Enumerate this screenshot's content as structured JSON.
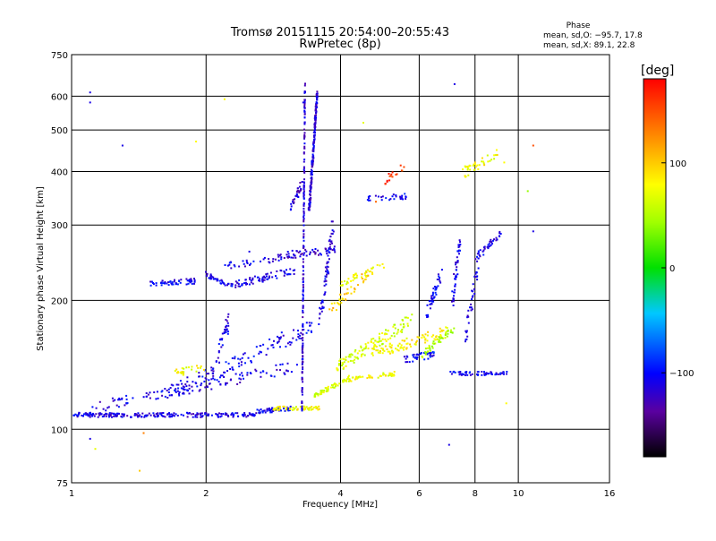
{
  "chart_data": {
    "type": "scatter",
    "title": "Tromsø 20151115 20:54:00–20:55:43",
    "subtitle": "RwPretec (8p)",
    "xlabel": "Frequency [MHz]",
    "ylabel": "Stationary phase Virtual Height [km]",
    "x_scale": "log",
    "y_scale": "log",
    "xlim": [
      1,
      16
    ],
    "ylim": [
      75,
      750
    ],
    "xticks": [
      "1",
      "2",
      "4",
      "6",
      "8",
      "10",
      "16"
    ],
    "xtick_values": [
      1,
      2,
      4,
      6,
      8,
      10,
      16
    ],
    "yticks": [
      "75",
      "100",
      "200",
      "300",
      "400",
      "500",
      "600",
      "750"
    ],
    "ytick_values": [
      75,
      100,
      200,
      300,
      400,
      500,
      600,
      750
    ],
    "grid": true,
    "stats": {
      "header": "Phase",
      "line_o": "mean, sd,O: −95.7, 17.8",
      "line_x": "mean, sd,X:  89.1, 22.8"
    },
    "colorbar": {
      "label": "[deg]",
      "range": [
        -180,
        180
      ],
      "ticks": [
        "100",
        "0",
        "−100"
      ],
      "tick_values": [
        100,
        0,
        -100
      ]
    },
    "traces": [
      {
        "from": [
          1.0,
          108
        ],
        "to": [
          1.4,
          108
        ],
        "n": 90,
        "phase": -110,
        "spread": 0.012
      },
      {
        "from": [
          1.4,
          108
        ],
        "to": [
          2.6,
          108
        ],
        "n": 140,
        "phase": -110,
        "spread": 0.012
      },
      {
        "from": [
          2.6,
          110
        ],
        "to": [
          3.1,
          112
        ],
        "n": 50,
        "phase": -105,
        "spread": 0.012
      },
      {
        "from": [
          2.8,
          112
        ],
        "to": [
          3.6,
          112
        ],
        "n": 60,
        "phase": 80,
        "spread": 0.01
      },
      {
        "from": [
          1.1,
          112
        ],
        "to": [
          3.2,
          140
        ],
        "n": 120,
        "phase": -110,
        "spread": 0.03
      },
      {
        "from": [
          1.6,
          120
        ],
        "to": [
          3.5,
          175
        ],
        "n": 120,
        "phase": -105,
        "spread": 0.04
      },
      {
        "from": [
          1.7,
          135
        ],
        "to": [
          2.0,
          140
        ],
        "n": 25,
        "phase": 75,
        "spread": 0.02
      },
      {
        "from": [
          2.05,
          130
        ],
        "to": [
          2.25,
          180
        ],
        "n": 40,
        "phase": -110,
        "spread": 0.04
      },
      {
        "from": [
          1.5,
          218
        ],
        "to": [
          1.9,
          222
        ],
        "n": 55,
        "phase": -105,
        "spread": 0.015
      },
      {
        "from": [
          2.0,
          230
        ],
        "to": [
          2.3,
          215
        ],
        "n": 40,
        "phase": -105,
        "spread": 0.015
      },
      {
        "from": [
          2.3,
          218
        ],
        "to": [
          3.2,
          235
        ],
        "n": 70,
        "phase": -110,
        "spread": 0.02
      },
      {
        "from": [
          2.2,
          240
        ],
        "to": [
          3.2,
          255
        ],
        "n": 40,
        "phase": -110,
        "spread": 0.02
      },
      {
        "from": [
          3.0,
          255
        ],
        "to": [
          3.9,
          262
        ],
        "n": 50,
        "phase": -120,
        "spread": 0.02
      },
      {
        "from": [
          3.28,
          110
        ],
        "to": [
          3.33,
          640
        ],
        "n": 180,
        "phase": -115,
        "spread": 0.006
      },
      {
        "from": [
          3.4,
          320
        ],
        "to": [
          3.55,
          620
        ],
        "n": 200,
        "phase": -115,
        "spread": 0.012
      },
      {
        "from": [
          3.1,
          330
        ],
        "to": [
          3.3,
          380
        ],
        "n": 30,
        "phase": -120,
        "spread": 0.02
      },
      {
        "from": [
          3.6,
          180
        ],
        "to": [
          3.85,
          300
        ],
        "n": 60,
        "phase": -110,
        "spread": 0.03
      },
      {
        "from": [
          3.5,
          120
        ],
        "to": [
          4.2,
          132
        ],
        "n": 60,
        "phase": 65,
        "spread": 0.012
      },
      {
        "from": [
          4.1,
          130
        ],
        "to": [
          5.3,
          135
        ],
        "n": 50,
        "phase": 75,
        "spread": 0.012
      },
      {
        "from": [
          3.9,
          140
        ],
        "to": [
          5.8,
          180
        ],
        "n": 120,
        "phase": 65,
        "spread": 0.035
      },
      {
        "from": [
          4.0,
          220
        ],
        "to": [
          5.0,
          240
        ],
        "n": 40,
        "phase": 75,
        "spread": 0.02
      },
      {
        "from": [
          4.7,
          150
        ],
        "to": [
          7.0,
          170
        ],
        "n": 90,
        "phase": 85,
        "spread": 0.03
      },
      {
        "from": [
          5.5,
          145
        ],
        "to": [
          6.5,
          150
        ],
        "n": 40,
        "phase": -100,
        "spread": 0.02
      },
      {
        "from": [
          6.1,
          150
        ],
        "to": [
          7.2,
          172
        ],
        "n": 45,
        "phase": 50,
        "spread": 0.02
      },
      {
        "from": [
          6.2,
          180
        ],
        "to": [
          6.7,
          230
        ],
        "n": 45,
        "phase": -105,
        "spread": 0.03
      },
      {
        "from": [
          7.1,
          195
        ],
        "to": [
          7.4,
          280
        ],
        "n": 45,
        "phase": -110,
        "spread": 0.03
      },
      {
        "from": [
          7.0,
          135
        ],
        "to": [
          9.5,
          135
        ],
        "n": 60,
        "phase": -105,
        "spread": 0.01
      },
      {
        "from": [
          7.6,
          160
        ],
        "to": [
          8.2,
          260
        ],
        "n": 40,
        "phase": -115,
        "spread": 0.03
      },
      {
        "from": [
          8.0,
          250
        ],
        "to": [
          9.2,
          290
        ],
        "n": 35,
        "phase": -110,
        "spread": 0.02
      },
      {
        "from": [
          4.6,
          345
        ],
        "to": [
          5.6,
          350
        ],
        "n": 30,
        "phase": -105,
        "spread": 0.015
      },
      {
        "from": [
          7.5,
          395
        ],
        "to": [
          9.0,
          440
        ],
        "n": 40,
        "phase": 80,
        "spread": 0.03
      },
      {
        "from": [
          5.0,
          380
        ],
        "to": [
          5.6,
          415
        ],
        "n": 18,
        "phase": 160,
        "spread": 0.02
      },
      {
        "from": [
          3.8,
          190
        ],
        "to": [
          4.6,
          230
        ],
        "n": 40,
        "phase": 100,
        "spread": 0.03
      }
    ],
    "outliers": [
      [
        1.1,
        612,
        -110
      ],
      [
        1.1,
        580,
        -110
      ],
      [
        1.3,
        460,
        -110
      ],
      [
        1.9,
        470,
        80
      ],
      [
        2.2,
        590,
        80
      ],
      [
        2.5,
        260,
        -110
      ],
      [
        7.0,
        92,
        -110
      ],
      [
        7.2,
        640,
        -110
      ],
      [
        1.1,
        95,
        -110
      ],
      [
        1.13,
        90,
        70
      ],
      [
        1.42,
        80,
        100
      ],
      [
        1.45,
        98,
        130
      ],
      [
        10.8,
        460,
        150
      ],
      [
        10.8,
        290,
        -110
      ],
      [
        10.5,
        360,
        40
      ],
      [
        9.4,
        115,
        80
      ],
      [
        4.5,
        520,
        70
      ],
      [
        3.3,
        580,
        -110
      ],
      [
        4.8,
        340,
        140
      ],
      [
        9.3,
        420,
        80
      ]
    ]
  }
}
